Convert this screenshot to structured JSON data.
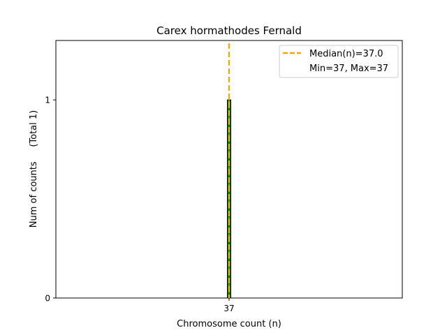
{
  "chart_data": {
    "type": "bar",
    "title": "Carex hormathodes Fernald",
    "xlabel": "Chromosome count (n)",
    "ylabel": "Num of counts     (Total 1)",
    "categories": [
      "37"
    ],
    "values": [
      1
    ],
    "x_ticks": [
      "37"
    ],
    "y_ticks": [
      "0",
      "1"
    ],
    "ylim": [
      0,
      1.3
    ],
    "grid": false,
    "legend_position": "top-right",
    "legend": [
      {
        "label": "Median(n)=37.0",
        "style": "dashed-line",
        "color": "#FFA500"
      },
      {
        "label": "Min=37, Max=37",
        "style": "none",
        "color": "#ffffff"
      }
    ],
    "median_line": {
      "x": 37.0,
      "color": "#FFA500"
    },
    "bar_colors": {
      "fill": "#008000",
      "edge": "#000000",
      "hatch": "#FFA500"
    }
  }
}
